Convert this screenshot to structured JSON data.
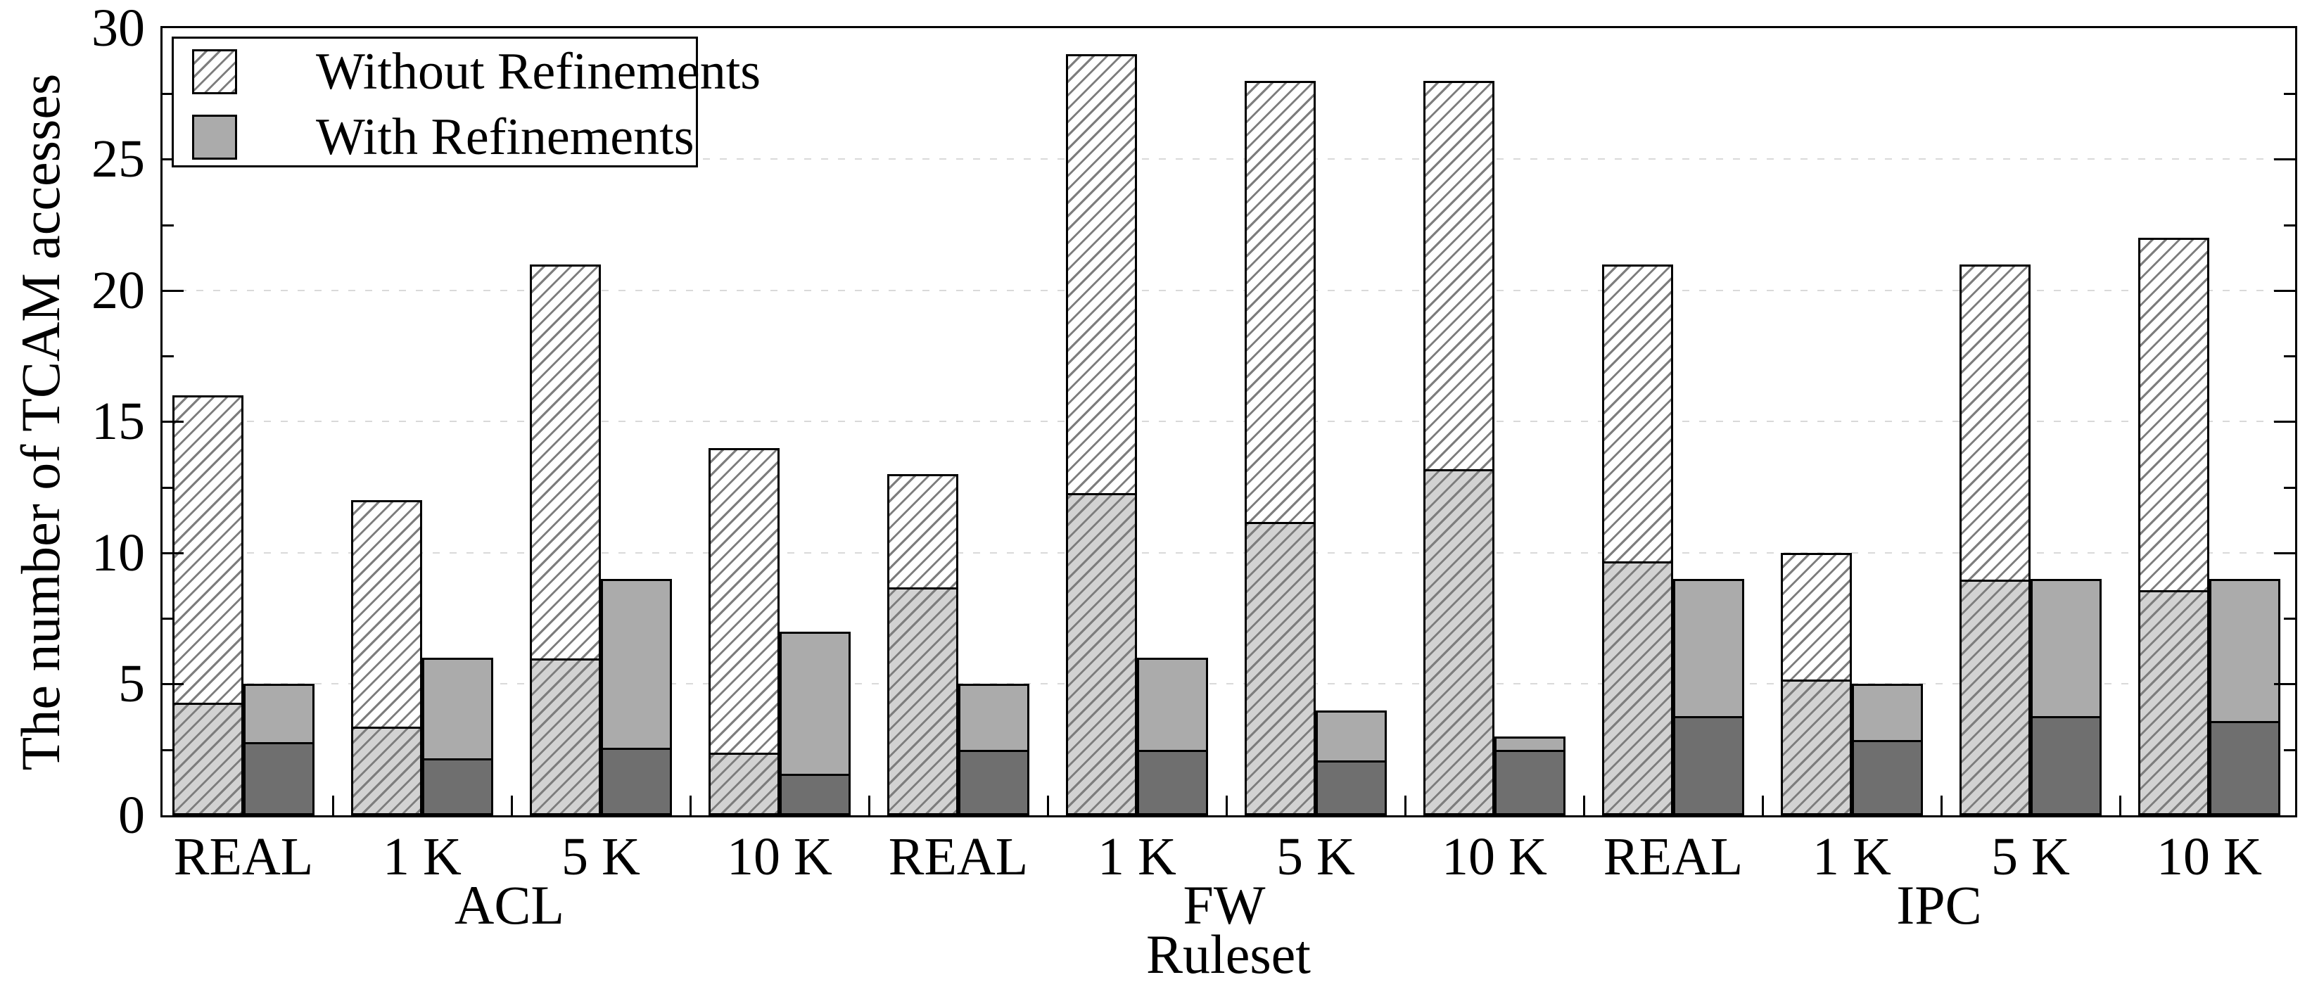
{
  "y_axis": {
    "label": "The number of TCAM accesses",
    "tick_labels": [
      "0",
      "5",
      "10",
      "15",
      "20",
      "25",
      "30"
    ],
    "major_ticks": [
      0,
      5,
      10,
      15,
      20,
      25,
      30
    ],
    "minor_tick_step": 2.5,
    "max": 30,
    "gridlines_at": [
      5,
      10,
      15,
      20,
      25
    ]
  },
  "x_axis": {
    "label": "Ruleset",
    "group_labels": [
      "ACL",
      "FW",
      "IPC"
    ],
    "category_labels": [
      "REAL",
      "1 K",
      "5 K",
      "10 K"
    ]
  },
  "legend": {
    "items": [
      {
        "label": "Without Refinements",
        "swatch": "hatched"
      },
      {
        "label": "With Refinements",
        "swatch": "solid"
      }
    ]
  },
  "colors": {
    "hatch_line": "#7d7d7d",
    "hatch_bg_upper": "#ffffff",
    "hatch_bg_lower": "#d2d2d2",
    "solid_upper": "#ababab",
    "solid_lower": "#6f6f6f",
    "bar_border": "#000000",
    "gridline": "#d9d9d9",
    "axis": "#000000"
  },
  "chart_data": {
    "type": "bar",
    "title": "",
    "xlabel": "Ruleset",
    "ylabel": "The number of TCAM accesses",
    "ylim": [
      0,
      30
    ],
    "grid": "horizontal dashed gridlines at major ticks",
    "legend_position": "upper left",
    "groups": [
      "ACL",
      "FW",
      "IPC"
    ],
    "categories": [
      "REAL",
      "1 K",
      "5 K",
      "10 K"
    ],
    "series": [
      {
        "name": "Without Refinements",
        "style": "hatched",
        "totals": [
          [
            16,
            12,
            21,
            14
          ],
          [
            13,
            29,
            28,
            28
          ],
          [
            21,
            10,
            21,
            22
          ]
        ],
        "lower_segments": [
          [
            4.2,
            3.3,
            5.9,
            2.3
          ],
          [
            8.6,
            12.2,
            11.1,
            13.1
          ],
          [
            9.6,
            5.1,
            8.9,
            8.5
          ]
        ]
      },
      {
        "name": "With Refinements",
        "style": "solid",
        "totals": [
          [
            5,
            6,
            9,
            7
          ],
          [
            5,
            6,
            4,
            3
          ],
          [
            9,
            5,
            9,
            9
          ]
        ],
        "lower_segments": [
          [
            2.7,
            2.1,
            2.5,
            1.5
          ],
          [
            2.4,
            2.4,
            2.0,
            2.4
          ],
          [
            3.7,
            2.8,
            3.7,
            3.5
          ]
        ]
      }
    ]
  }
}
